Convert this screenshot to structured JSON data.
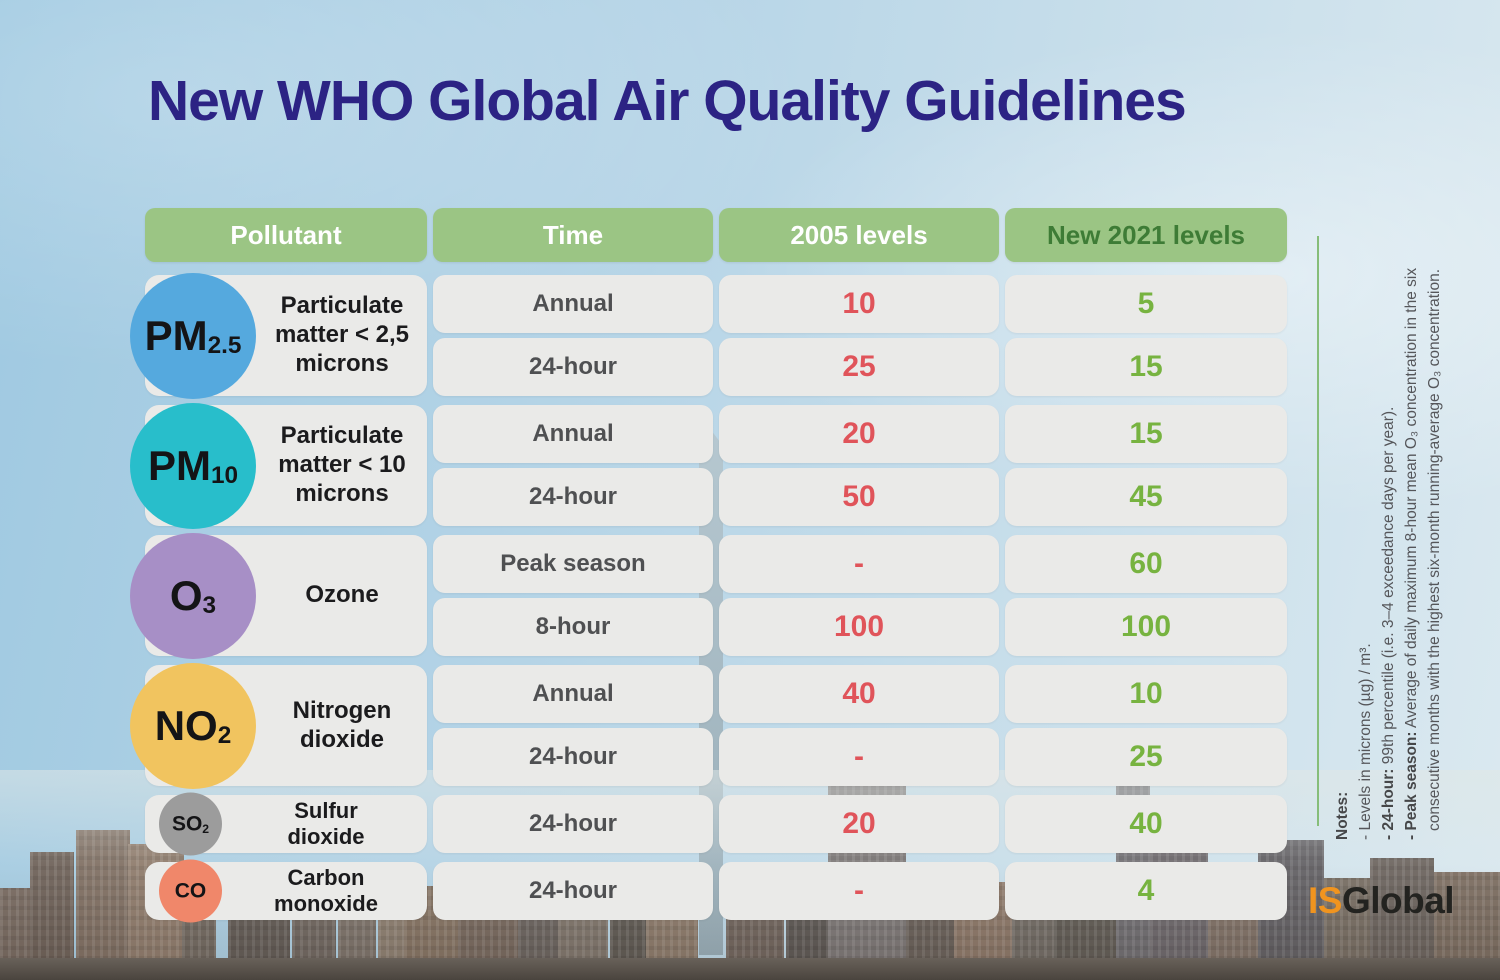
{
  "title": "New WHO Global Air Quality Guidelines",
  "colors": {
    "header_bg": "#9BC584",
    "header_text": "#FFFFFF",
    "header_new_text": "#3E7C36",
    "level_2005": "#E0545A",
    "level_2021": "#77B340",
    "title": "#2C2384"
  },
  "table": {
    "headers": [
      "Pollutant",
      "Time",
      "2005 levels",
      "New 2021 levels"
    ],
    "rows": [
      {
        "symbol": "PM",
        "symbol_sub": "2.5",
        "name_line1": "Particulate matter",
        "name_line2": "< 2,5 microns",
        "circle_color": "#55A9DE",
        "entries": [
          {
            "time": "Annual",
            "level_2005": "10",
            "level_2021": "5"
          },
          {
            "time": "24-hour",
            "level_2005": "25",
            "level_2021": "15"
          }
        ]
      },
      {
        "symbol": "PM",
        "symbol_sub": "10",
        "name_line1": "Particulate matter",
        "name_line2": "< 10 microns",
        "circle_color": "#28BECB",
        "entries": [
          {
            "time": "Annual",
            "level_2005": "20",
            "level_2021": "15"
          },
          {
            "time": "24-hour",
            "level_2005": "50",
            "level_2021": "45"
          }
        ]
      },
      {
        "symbol": "O",
        "symbol_sub": "3",
        "name_line1": "Ozone",
        "name_line2": "",
        "circle_color": "#A78FC6",
        "entries": [
          {
            "time": "Peak season",
            "level_2005": "-",
            "level_2021": "60"
          },
          {
            "time": "8-hour",
            "level_2005": "100",
            "level_2021": "100"
          }
        ]
      },
      {
        "symbol": "NO",
        "symbol_sub": "2",
        "name_line1": "Nitrogen dioxide",
        "name_line2": "",
        "circle_color": "#F1C45F",
        "entries": [
          {
            "time": "Annual",
            "level_2005": "40",
            "level_2021": "10"
          },
          {
            "time": "24-hour",
            "level_2005": "-",
            "level_2021": "25"
          }
        ]
      },
      {
        "symbol": "SO",
        "symbol_sub": "2",
        "name_line1": "Sulfur dioxide",
        "name_line2": "",
        "circle_color": "#9C9C9C",
        "entries": [
          {
            "time": "24-hour",
            "level_2005": "20",
            "level_2021": "40"
          }
        ]
      },
      {
        "symbol": "CO",
        "symbol_sub": "",
        "name_line1": "Carbon monoxide",
        "name_line2": "",
        "circle_color": "#F0876A",
        "entries": [
          {
            "time": "24-hour",
            "level_2005": "-",
            "level_2021": "4"
          }
        ]
      }
    ]
  },
  "chart_data": {
    "type": "table",
    "title": "New WHO Global Air Quality Guidelines",
    "columns": [
      "Pollutant",
      "Time",
      "2005 levels",
      "New 2021 levels"
    ],
    "units": "µg/m³",
    "rows": [
      [
        "PM2.5 — Particulate matter < 2,5 microns",
        "Annual",
        10,
        5
      ],
      [
        "PM2.5 — Particulate matter < 2,5 microns",
        "24-hour",
        25,
        15
      ],
      [
        "PM10 — Particulate matter < 10 microns",
        "Annual",
        20,
        15
      ],
      [
        "PM10 — Particulate matter < 10 microns",
        "24-hour",
        50,
        45
      ],
      [
        "O3 — Ozone",
        "Peak season",
        null,
        60
      ],
      [
        "O3 — Ozone",
        "8-hour",
        100,
        100
      ],
      [
        "NO2 — Nitrogen dioxide",
        "Annual",
        40,
        10
      ],
      [
        "NO2 — Nitrogen dioxide",
        "24-hour",
        null,
        25
      ],
      [
        "SO2 — Sulfur dioxide",
        "24-hour",
        20,
        40
      ],
      [
        "CO — Carbon monoxide",
        "24-hour",
        null,
        4
      ]
    ]
  },
  "notes": {
    "title": "Notes:",
    "line1": "- Levels in microns (µg) / m³.",
    "line2_prefix": "- 24-hour:",
    "line2_rest": " 99th percentile (i.e. 3–4 exceedance days per year).",
    "line3_prefix": "- Peak season:",
    "line3_rest": " Average of daily maximum 8-hour mean O₃ concentration in the six",
    "line4": "consecutive months with the highest six-month running-average O₃ concentration."
  },
  "logo": {
    "is": "IS",
    "global": "Global"
  }
}
